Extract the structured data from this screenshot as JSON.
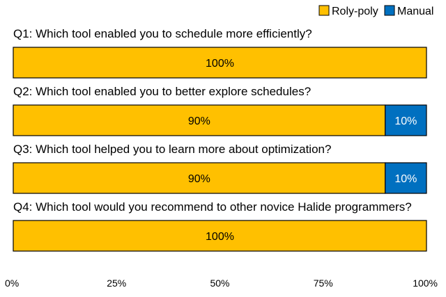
{
  "chart_data": {
    "type": "bar",
    "orientation": "horizontal",
    "stacked": true,
    "xlim": [
      0,
      100
    ],
    "x_ticks": [
      0,
      25,
      50,
      75,
      100
    ],
    "x_tick_labels": [
      "0%",
      "25%",
      "50%",
      "75%",
      "100%"
    ],
    "legend_position": "top-right",
    "grid": false,
    "series": [
      {
        "name": "Roly-poly",
        "color": "#FFC000",
        "text_color": "#000000"
      },
      {
        "name": "Manual",
        "color": "#0070C0",
        "text_color": "#FFFFFF"
      }
    ],
    "questions": [
      {
        "label": "Q1: Which tool enabled you to schedule more efficiently?",
        "values": [
          100,
          0
        ],
        "value_labels": [
          "100%",
          ""
        ]
      },
      {
        "label": "Q2: Which tool enabled you to better explore schedules?",
        "values": [
          90,
          10
        ],
        "value_labels": [
          "90%",
          "10%"
        ]
      },
      {
        "label": "Q3: Which tool helped you to learn more about optimization?",
        "values": [
          90,
          10
        ],
        "value_labels": [
          "90%",
          "10%"
        ]
      },
      {
        "label": "Q4: Which tool would you recommend to other novice Halide programmers?",
        "values": [
          100,
          0
        ],
        "value_labels": [
          "100%",
          ""
        ]
      }
    ]
  }
}
